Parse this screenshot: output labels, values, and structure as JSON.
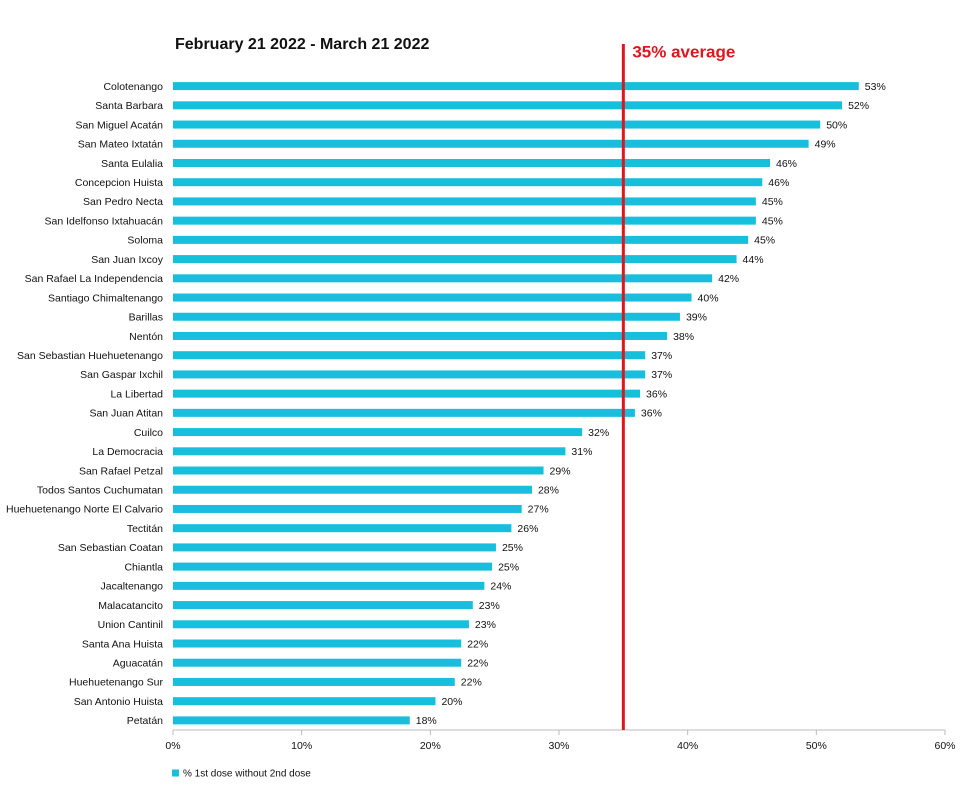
{
  "chart_data": {
    "type": "hbar",
    "title": "February 21 2022 - March 21 2022",
    "categories": [
      "Colotenango",
      "Santa Barbara",
      "San Miguel Acatán",
      "San Mateo Ixtatán",
      "Santa Eulalia",
      "Concepcion Huista",
      "San Pedro Necta",
      "San Idelfonso Ixtahuacán",
      "Soloma",
      "San Juan Ixcoy",
      "San Rafael La Independencia",
      "Santiago Chimaltenango",
      "Barillas",
      "Nentón",
      "San Sebastian Huehuetenango",
      "San Gaspar Ixchil",
      "La Libertad",
      "San Juan Atitan",
      "Cuilco",
      "La Democracia",
      "San Rafael Petzal",
      "Todos Santos Cuchumatan",
      "Huehuetenango Norte El Calvario",
      "Tectitán",
      "San Sebastian Coatan",
      "Chiantla",
      "Jacaltenango",
      "Malacatancito",
      "Union Cantinil",
      "Santa Ana Huista",
      "Aguacatán",
      "Huehuetenango Sur",
      "San Antonio Huista",
      "Petatán"
    ],
    "series": [
      {
        "name": "% 1st dose without 2nd dose",
        "color": "#17bfdc",
        "values": [
          53.3,
          52.0,
          50.3,
          49.4,
          46.4,
          45.8,
          45.3,
          45.3,
          44.7,
          43.8,
          41.9,
          40.3,
          39.4,
          38.4,
          36.7,
          36.7,
          36.3,
          35.9,
          31.8,
          30.5,
          28.8,
          27.9,
          27.1,
          26.3,
          25.1,
          24.8,
          24.2,
          23.3,
          23.0,
          22.4,
          22.4,
          21.9,
          20.4,
          18.4
        ],
        "value_labels": [
          "53%",
          "52%",
          "50%",
          "49%",
          "46%",
          "46%",
          "45%",
          "45%",
          "45%",
          "44%",
          "42%",
          "40%",
          "39%",
          "38%",
          "37%",
          "37%",
          "36%",
          "36%",
          "32%",
          "31%",
          "29%",
          "28%",
          "27%",
          "26%",
          "25%",
          "25%",
          "24%",
          "23%",
          "23%",
          "22%",
          "22%",
          "22%",
          "20%",
          "18%"
        ]
      }
    ],
    "xlim": [
      0,
      60
    ],
    "xticks": [
      {
        "value": 0,
        "label": "0%"
      },
      {
        "value": 10,
        "label": "10%"
      },
      {
        "value": 20,
        "label": "20%"
      },
      {
        "value": 30,
        "label": "30%"
      },
      {
        "value": 40,
        "label": "40%"
      },
      {
        "value": 50,
        "label": "50%"
      },
      {
        "value": 60,
        "label": "60%"
      }
    ],
    "average_line": {
      "value": 35,
      "label": "35% average",
      "color": "#e0161d"
    },
    "legend": "bottom-left",
    "grid": false
  }
}
